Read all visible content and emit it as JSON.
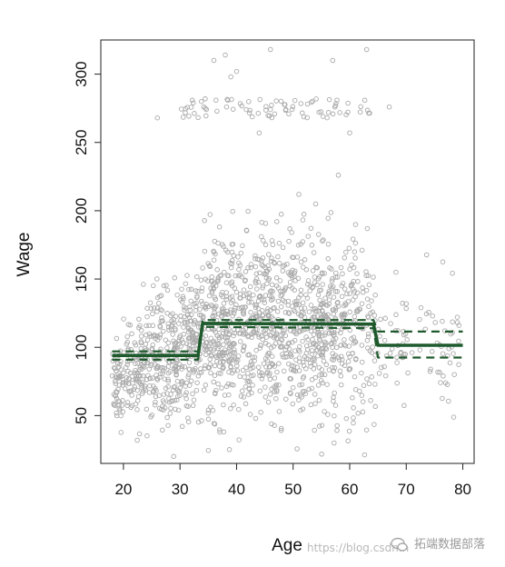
{
  "chart_data": {
    "type": "scatter",
    "xlabel": "Age",
    "ylabel": "Wage",
    "xlim": [
      16,
      82
    ],
    "ylim": [
      15,
      325
    ],
    "xticks": [
      20,
      30,
      40,
      50,
      60,
      70,
      80
    ],
    "yticks": [
      50,
      100,
      150,
      200,
      250,
      300
    ],
    "grid": false,
    "point_color": "#aaaaaa",
    "fit_color": "#1e5a2c",
    "scatter_description": "Gray open circles: a dense main cloud between wage ~40 and ~200 spanning ages 18–80, with a separate high-earner band near wage 270–320 for ages ~30–64.",
    "step_fit": {
      "name": "fit",
      "points": [
        [
          18,
          94
        ],
        [
          33.2,
          94
        ],
        [
          34,
          117.5
        ],
        [
          64.2,
          117
        ],
        [
          65,
          101.5
        ],
        [
          80,
          101.5
        ]
      ]
    },
    "upper_band": {
      "name": "upper",
      "points": [
        [
          18,
          97
        ],
        [
          33.2,
          97
        ],
        [
          34,
          120
        ],
        [
          64.2,
          120
        ],
        [
          65,
          111.5
        ],
        [
          80,
          111.5
        ]
      ]
    },
    "lower_band": {
      "name": "lower",
      "points": [
        [
          18,
          91
        ],
        [
          33.2,
          91
        ],
        [
          34,
          115
        ],
        [
          64.2,
          114
        ],
        [
          65,
          92.5
        ],
        [
          80,
          92.5
        ]
      ]
    }
  },
  "watermark": {
    "url_text": "https://blog.csdn.n",
    "brand_text": "拓端数据部落",
    "brand_icon": "wechat-icon"
  }
}
